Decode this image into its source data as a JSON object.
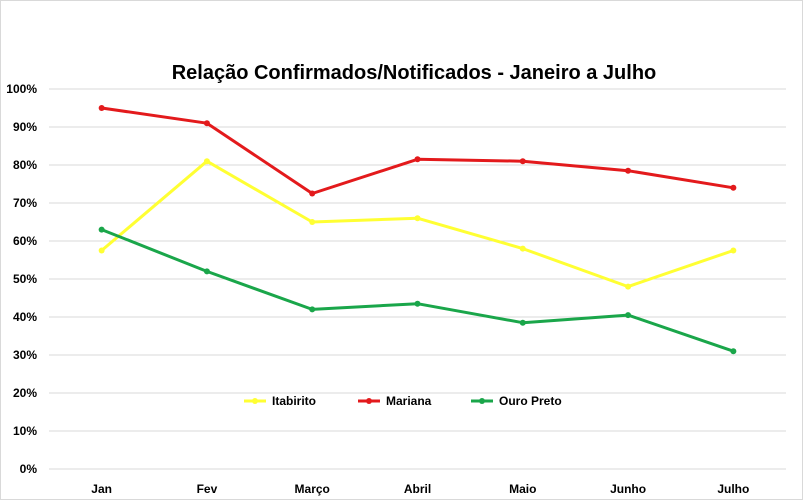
{
  "chart_data": {
    "type": "line",
    "title": "Relação Confirmados/Notificados - Janeiro a Julho",
    "categories": [
      "Jan",
      "Fev",
      "Março",
      "Abril",
      "Maio",
      "Junho",
      "Julho"
    ],
    "y_ticks": [
      "0%",
      "10%",
      "20%",
      "30%",
      "40%",
      "50%",
      "60%",
      "70%",
      "80%",
      "90%",
      "100%"
    ],
    "ylim": [
      0,
      100
    ],
    "y_unit": "%",
    "grid": true,
    "legend_position": "bottom-center",
    "series": [
      {
        "name": "Itabirito",
        "color": "#ffff33",
        "values": [
          57.5,
          81,
          65,
          66,
          58,
          48,
          57.5
        ]
      },
      {
        "name": "Mariana",
        "color": "#e31a1c",
        "values": [
          95,
          91,
          72.5,
          81.5,
          81,
          78.5,
          74
        ]
      },
      {
        "name": "Ouro Preto",
        "color": "#1aa64a",
        "values": [
          63,
          52,
          42,
          43.5,
          38.5,
          40.5,
          31
        ]
      }
    ]
  }
}
